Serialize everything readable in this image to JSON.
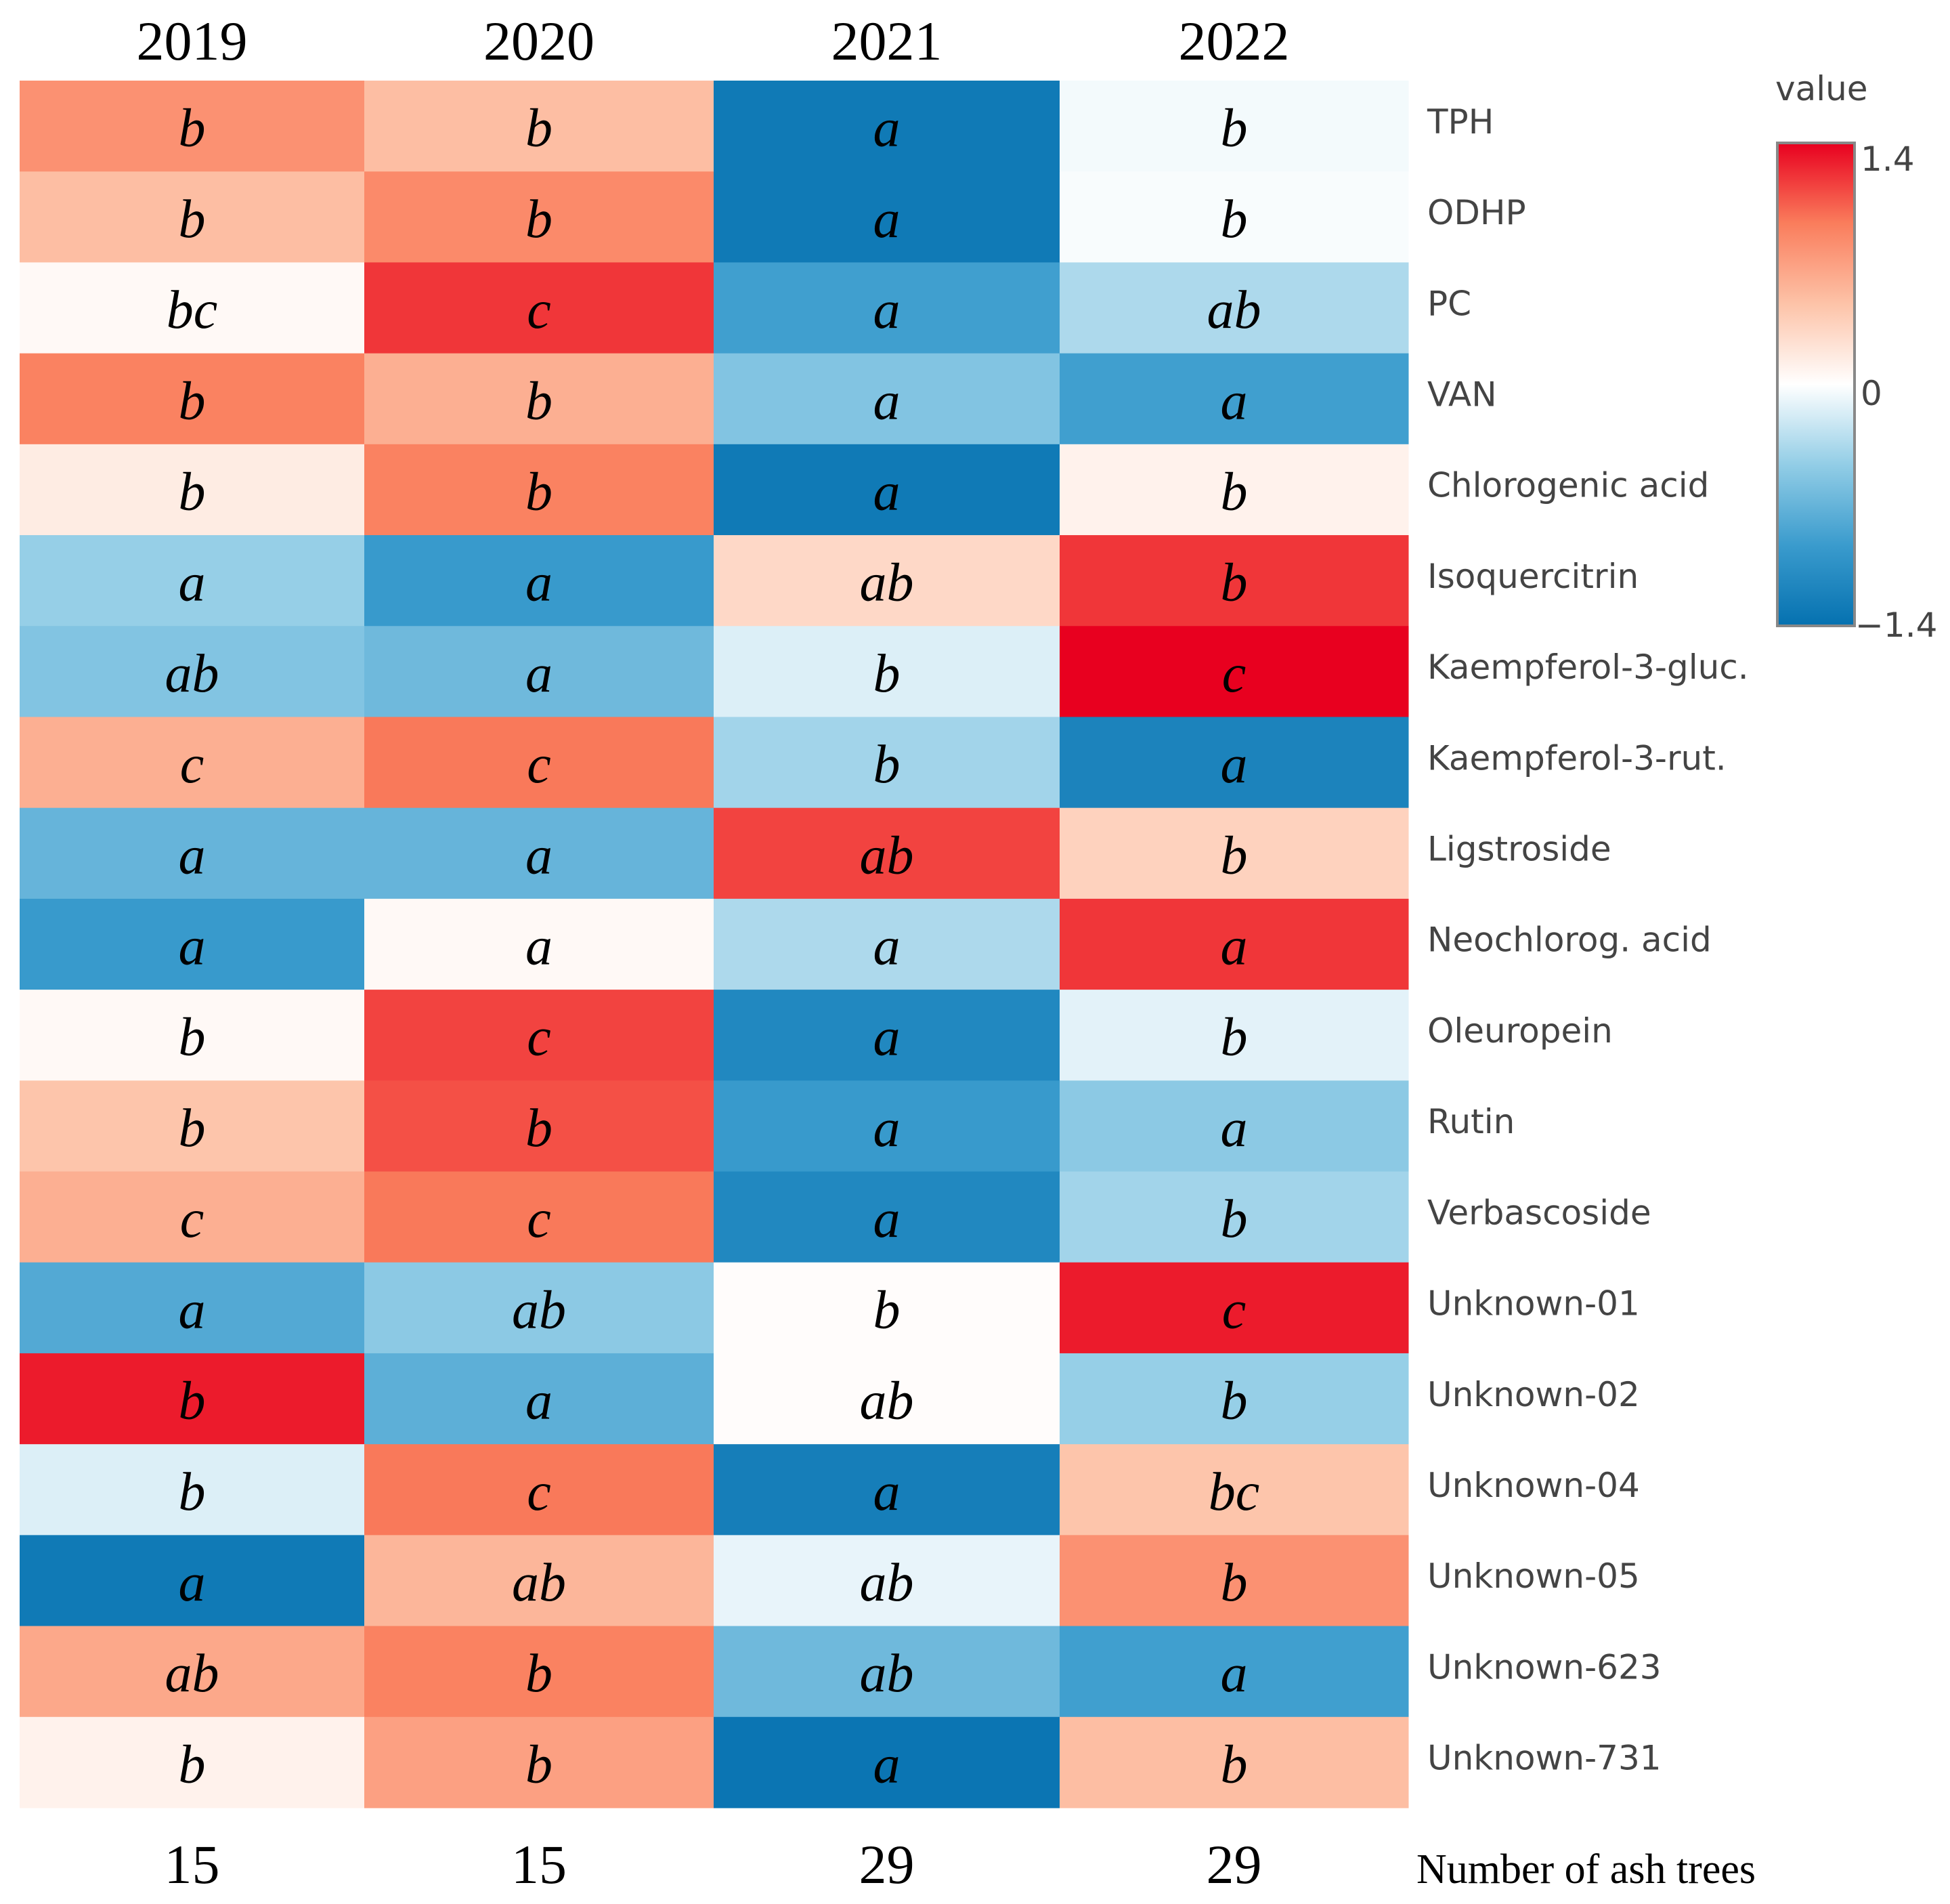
{
  "chart_data": {
    "type": "heatmap",
    "title": "",
    "columns": [
      "2019",
      "2020",
      "2021",
      "2022"
    ],
    "rows": [
      "TPH",
      "ODHP",
      "PC",
      "VAN",
      "Chlorogenic acid",
      "Isoquercitrin",
      "Kaempferol-3-gluc.",
      "Kaempferol-3-rut.",
      "Ligstroside",
      "Neochlorog. acid",
      "Oleuropein",
      "Rutin",
      "Verbascoside",
      "Unknown-01",
      "Unknown-02",
      "Unknown-04",
      "Unknown-05",
      "Unknown-623",
      "Unknown-731"
    ],
    "values": [
      [
        0.8,
        0.5,
        -1.3,
        -0.05
      ],
      [
        0.5,
        0.85,
        -1.3,
        -0.03
      ],
      [
        0.05,
        1.2,
        -0.9,
        -0.35
      ],
      [
        0.9,
        0.6,
        -0.55,
        -0.9
      ],
      [
        0.15,
        0.9,
        -1.3,
        0.1
      ],
      [
        -0.45,
        -0.95,
        0.3,
        1.2
      ],
      [
        -0.55,
        -0.65,
        -0.15,
        1.4
      ],
      [
        0.6,
        0.95,
        -0.4,
        -1.2
      ],
      [
        -0.7,
        -0.7,
        1.15,
        0.35
      ],
      [
        -0.95,
        0.05,
        -0.35,
        1.2
      ],
      [
        0.05,
        1.15,
        -1.15,
        -0.12
      ],
      [
        0.45,
        1.1,
        -0.95,
        -0.5
      ],
      [
        0.6,
        0.95,
        -1.15,
        -0.4
      ],
      [
        -0.8,
        -0.5,
        0.02,
        1.3
      ],
      [
        1.3,
        -0.75,
        0.02,
        -0.45
      ],
      [
        -0.15,
        0.95,
        -1.25,
        0.45
      ],
      [
        -1.3,
        0.55,
        -0.1,
        0.8
      ],
      [
        0.65,
        0.9,
        -0.65,
        -0.9
      ],
      [
        0.1,
        0.7,
        -1.35,
        0.5
      ]
    ],
    "letters": [
      [
        "b",
        "b",
        "a",
        "b"
      ],
      [
        "b",
        "b",
        "a",
        "b"
      ],
      [
        "bc",
        "c",
        "a",
        "ab"
      ],
      [
        "b",
        "b",
        "a",
        "a"
      ],
      [
        "b",
        "b",
        "a",
        "b"
      ],
      [
        "a",
        "a",
        "ab",
        "b"
      ],
      [
        "ab",
        "a",
        "b",
        "c"
      ],
      [
        "c",
        "c",
        "b",
        "a"
      ],
      [
        "a",
        "a",
        "ab",
        "b"
      ],
      [
        "a",
        "a",
        "a",
        "a"
      ],
      [
        "b",
        "c",
        "a",
        "b"
      ],
      [
        "b",
        "b",
        "a",
        "a"
      ],
      [
        "c",
        "c",
        "a",
        "b"
      ],
      [
        "a",
        "ab",
        "b",
        "c"
      ],
      [
        "b",
        "a",
        "ab",
        "b"
      ],
      [
        "b",
        "c",
        "a",
        "bc"
      ],
      [
        "a",
        "ab",
        "ab",
        "b"
      ],
      [
        "ab",
        "b",
        "ab",
        "a"
      ],
      [
        "b",
        "b",
        "a",
        "b"
      ]
    ],
    "footer_values": [
      "15",
      "15",
      "29",
      "29"
    ],
    "footer_label": "Number of ash trees",
    "colorbar": {
      "title": "value",
      "range": [
        -1.4,
        1.4
      ],
      "ticks": [
        "1.4",
        "0",
        "−1.4"
      ]
    },
    "colorscale": [
      "#0571b0",
      "#3a9bcd",
      "#92cde6",
      "#ffffff",
      "#fdc3a8",
      "#fa7d5c",
      "#e8001f"
    ]
  }
}
